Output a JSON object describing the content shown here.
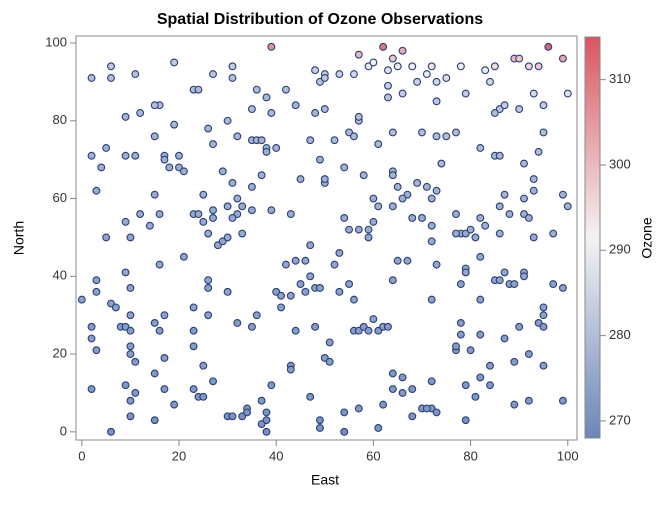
{
  "chart_data": {
    "type": "scatter",
    "title": "Spatial Distribution of Ozone Observations",
    "x_label": "East",
    "y_label": "North",
    "colorbar_label": "Ozone",
    "xlim": [
      -1.2,
      101.9
    ],
    "ylim": [
      -2.1,
      101.8
    ],
    "clim": [
      268,
      315
    ],
    "xticks": [
      0,
      20,
      40,
      60,
      80,
      100
    ],
    "yticks": [
      0,
      20,
      40,
      60,
      80,
      100
    ],
    "cticks": [
      270,
      280,
      290,
      300,
      310
    ],
    "colormap": [
      "#6a86b8",
      "#f3f3f3",
      "#d9555f"
    ],
    "marker_edge": "#2a3f78",
    "x": [
      2,
      6,
      6,
      11,
      19,
      23,
      24,
      27,
      31,
      31,
      39,
      36,
      38,
      39,
      42,
      44,
      48,
      48,
      49,
      50,
      50,
      50,
      53,
      56,
      57,
      59,
      60,
      62,
      63,
      63,
      63,
      64,
      65,
      66,
      66,
      68,
      69,
      72,
      71,
      73,
      75,
      78,
      79,
      83,
      85,
      84,
      86,
      85,
      87,
      89,
      90,
      90,
      92,
      94,
      93,
      95,
      96,
      99,
      100,
      12,
      5,
      9,
      26,
      9,
      11,
      16,
      15,
      19,
      30,
      35,
      32,
      35,
      36,
      37,
      38,
      38,
      40,
      37,
      45,
      47,
      49,
      50,
      50,
      52,
      54,
      55,
      56,
      57,
      57,
      58,
      60,
      61,
      64,
      64,
      64,
      65,
      67,
      69,
      70,
      71,
      73,
      73,
      74,
      75,
      73,
      77,
      78,
      79,
      77,
      77,
      80,
      81,
      82,
      82,
      83,
      85,
      86,
      87,
      86,
      88,
      91,
      91,
      93,
      93,
      92,
      95,
      94,
      99,
      100,
      97,
      93,
      86,
      91,
      15,
      16,
      17,
      17,
      18,
      20,
      20,
      21,
      15,
      21,
      23,
      24,
      25,
      25,
      26,
      27,
      27,
      27,
      28,
      29,
      29,
      30,
      30,
      31,
      32,
      32,
      31,
      33,
      33,
      35,
      35,
      39,
      43,
      47,
      54,
      57,
      59,
      59,
      60,
      61,
      64,
      66,
      68,
      72,
      72,
      72,
      70,
      4,
      3,
      2,
      12,
      9,
      10,
      5,
      14,
      0,
      2,
      2,
      3,
      3,
      3,
      2,
      6,
      7,
      8,
      9,
      9,
      10,
      10,
      10,
      10,
      10,
      10,
      9,
      10,
      11,
      11,
      6,
      15,
      15,
      15,
      16,
      16,
      17,
      17,
      17,
      19,
      23,
      23,
      23,
      23,
      24,
      25,
      25,
      26,
      26,
      26,
      27,
      30,
      30,
      31,
      32,
      33,
      34,
      34,
      35,
      36,
      37,
      37,
      38,
      38,
      38,
      39,
      40,
      41,
      41,
      42,
      43,
      43,
      43,
      44,
      44,
      45,
      46,
      46,
      47,
      47,
      48,
      48,
      49,
      49,
      49,
      50,
      51,
      52,
      51,
      53,
      53,
      54,
      54,
      55,
      55,
      56,
      56,
      57,
      58,
      57,
      59,
      60,
      61,
      61,
      62,
      62,
      63,
      64,
      64,
      64,
      65,
      66,
      66,
      67,
      68,
      68,
      70,
      72,
      73,
      72,
      73,
      72,
      77,
      77,
      78,
      78,
      78,
      79,
      79,
      79,
      79,
      80,
      81,
      82,
      82,
      82,
      82,
      84,
      84,
      85,
      86,
      87,
      87,
      88,
      89,
      89,
      89,
      90,
      91,
      91,
      92,
      92,
      94,
      95,
      95,
      95,
      95,
      97,
      99,
      99,
      71
    ],
    "y": [
      91,
      91,
      94,
      92,
      95,
      88,
      88,
      92,
      91,
      94,
      99,
      88,
      86,
      82,
      88,
      84,
      93,
      82,
      90,
      92,
      91,
      83,
      92,
      92,
      97,
      94,
      95,
      99,
      93,
      89,
      86,
      96,
      94,
      98,
      87,
      94,
      90,
      94,
      92,
      90,
      91,
      94,
      87,
      93,
      94,
      90,
      83,
      82,
      84,
      96,
      96,
      83,
      94,
      94,
      87,
      84,
      99,
      96,
      87,
      82,
      73,
      81,
      78,
      71,
      71,
      84,
      84,
      79,
      80,
      83,
      76,
      75,
      75,
      75,
      73,
      72,
      73,
      66,
      65,
      75,
      70,
      64,
      65,
      75,
      68,
      77,
      76,
      80,
      81,
      66,
      60,
      74,
      77,
      67,
      66,
      63,
      61,
      64,
      77,
      63,
      76,
      85,
      69,
      76,
      62,
      56,
      51,
      51,
      51,
      77,
      52,
      50,
      73,
      55,
      53,
      71,
      71,
      61,
      58,
      56,
      56,
      69,
      65,
      62,
      55,
      77,
      72,
      61,
      58,
      51,
      50,
      51,
      60,
      61,
      56,
      71,
      70,
      68,
      71,
      68,
      67,
      76,
      45,
      56,
      56,
      61,
      54,
      51,
      55,
      57,
      74,
      48,
      49,
      67,
      50,
      58,
      64,
      60,
      56,
      55,
      58,
      51,
      63,
      57,
      57,
      56,
      48,
      55,
      52,
      50,
      52,
      54,
      58,
      58,
      60,
      55,
      60,
      49,
      53,
      55,
      68,
      62,
      71,
      56,
      54,
      50,
      50,
      53,
      34,
      27,
      24,
      39,
      36,
      21,
      11,
      33,
      32,
      27,
      27,
      41,
      37,
      30,
      26,
      22,
      20,
      8,
      12,
      4,
      18,
      10,
      0,
      28,
      15,
      3,
      43,
      26,
      30,
      19,
      11,
      7,
      32,
      26,
      22,
      11,
      9,
      9,
      17,
      30,
      39,
      37,
      13,
      36,
      4,
      4,
      28,
      4,
      6,
      5,
      27,
      30,
      8,
      2,
      5,
      3,
      0,
      12,
      36,
      35,
      32,
      43,
      35,
      17,
      16,
      44,
      26,
      38,
      44,
      36,
      40,
      9,
      37,
      27,
      37,
      1,
      3,
      19,
      18,
      43,
      23,
      36,
      46,
      5,
      0,
      52,
      38,
      34,
      26,
      26,
      27,
      6,
      26,
      29,
      26,
      1,
      27,
      7,
      27,
      11,
      39,
      15,
      44,
      14,
      10,
      44,
      11,
      4,
      6,
      6,
      5,
      13,
      43,
      34,
      21,
      22,
      25,
      28,
      38,
      12,
      3,
      42,
      41,
      21,
      9,
      34,
      45,
      14,
      25,
      12,
      17,
      39,
      39,
      24,
      41,
      38,
      7,
      18,
      38,
      27,
      41,
      40,
      20,
      8,
      28,
      30,
      32,
      27,
      17,
      38,
      37,
      8,
      6
    ],
    "ozone": [
      280,
      280,
      282,
      281,
      283,
      280,
      279,
      282,
      281,
      283,
      306,
      280,
      279,
      279,
      280,
      278,
      284,
      278,
      281,
      283,
      282,
      279,
      284,
      286,
      300,
      290,
      292,
      310,
      288,
      284,
      282,
      298,
      290,
      302,
      283,
      292,
      285,
      294,
      290,
      286,
      287,
      292,
      283,
      290,
      295,
      286,
      282,
      280,
      283,
      300,
      298,
      282,
      296,
      298,
      286,
      283,
      313,
      303,
      288,
      279,
      277,
      278,
      278,
      277,
      277,
      280,
      280,
      279,
      279,
      280,
      278,
      278,
      278,
      278,
      278,
      277,
      278,
      277,
      277,
      278,
      277,
      277,
      277,
      279,
      278,
      279,
      279,
      280,
      280,
      278,
      277,
      279,
      280,
      278,
      278,
      278,
      277,
      278,
      280,
      278,
      280,
      282,
      279,
      280,
      278,
      277,
      276,
      276,
      276,
      280,
      277,
      276,
      279,
      277,
      277,
      279,
      279,
      278,
      277,
      277,
      277,
      279,
      278,
      278,
      277,
      280,
      279,
      278,
      278,
      277,
      276,
      277,
      278,
      276,
      276,
      277,
      277,
      277,
      277,
      277,
      277,
      278,
      275,
      276,
      276,
      277,
      276,
      276,
      276,
      276,
      278,
      275,
      275,
      277,
      276,
      276,
      277,
      277,
      276,
      276,
      276,
      276,
      277,
      276,
      276,
      276,
      275,
      276,
      276,
      276,
      276,
      276,
      277,
      277,
      277,
      276,
      277,
      276,
      276,
      276,
      277,
      276,
      277,
      276,
      276,
      275,
      275,
      276,
      274,
      273,
      273,
      274,
      274,
      273,
      272,
      274,
      274,
      273,
      273,
      275,
      274,
      274,
      273,
      273,
      273,
      272,
      272,
      271,
      273,
      272,
      271,
      273,
      272,
      271,
      275,
      273,
      274,
      273,
      272,
      272,
      274,
      273,
      273,
      272,
      272,
      272,
      273,
      274,
      275,
      274,
      272,
      274,
      271,
      271,
      273,
      271,
      272,
      271,
      273,
      274,
      272,
      271,
      271,
      271,
      270,
      272,
      274,
      274,
      274,
      275,
      274,
      273,
      273,
      275,
      273,
      274,
      275,
      274,
      275,
      272,
      274,
      273,
      274,
      271,
      271,
      273,
      273,
      275,
      273,
      274,
      275,
      271,
      270,
      276,
      274,
      274,
      273,
      273,
      273,
      272,
      273,
      274,
      273,
      271,
      273,
      272,
      273,
      272,
      274,
      272,
      275,
      272,
      272,
      275,
      272,
      271,
      272,
      272,
      271,
      272,
      275,
      274,
      273,
      273,
      273,
      273,
      274,
      272,
      271,
      275,
      275,
      273,
      272,
      274,
      275,
      272,
      273,
      272,
      273,
      274,
      274,
      273,
      275,
      274,
      272,
      273,
      274,
      273,
      275,
      275,
      273,
      272,
      273,
      274,
      274,
      273,
      273,
      274,
      274,
      272,
      272
    ]
  }
}
